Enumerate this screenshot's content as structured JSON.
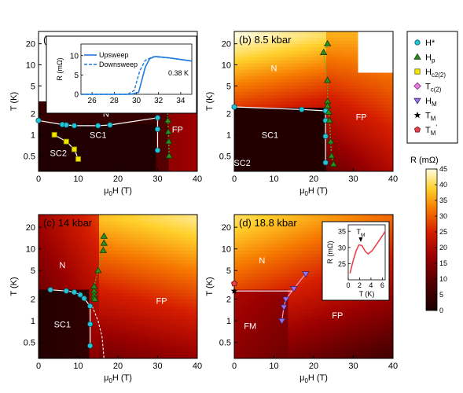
{
  "colors": {
    "hstar": "#22c4d6",
    "hp": "#2f8f1f",
    "hc2": "#f2e600",
    "tc2": "#e77be2",
    "hm": "#9a6ff0",
    "tm": "#000000",
    "tmp": "#e8414b",
    "hm_line": "#f49ad2",
    "inset_line": "#1f7bd9",
    "inset2_line": "#e8414b"
  },
  "chart_data": [
    {
      "type": "heatmap",
      "panel_label": "(a) 4 kbar",
      "xlabel": "μ0H (T)",
      "ylabel": "T (K)",
      "xlim": [
        0,
        40
      ],
      "ylim": [
        0.3,
        30
      ],
      "yscale": "log",
      "x_ticks": [
        "0",
        "10",
        "20",
        "30",
        "40"
      ],
      "y_ticks": [
        "0.5",
        "1",
        "2",
        "5",
        "10",
        "20"
      ],
      "y_tick_values": [
        0.5,
        1,
        2,
        5,
        10,
        20
      ],
      "data_max_T": 3.0,
      "regions": [
        {
          "label": "N",
          "x": 17,
          "y": 2.0
        },
        {
          "label": "SC1",
          "x": 15,
          "y": 1.0
        },
        {
          "label": "SC2",
          "x": 5,
          "y": 0.55
        },
        {
          "label": "FP",
          "x": 35,
          "y": 1.2
        }
      ],
      "series": [
        {
          "name": "H*",
          "marker": "circle",
          "x": [
            0,
            6,
            7,
            9,
            15,
            18,
            30,
            30,
            30
          ],
          "y": [
            1.6,
            1.4,
            1.38,
            1.35,
            1.35,
            1.38,
            1.75,
            1.2,
            0.6
          ]
        },
        {
          "name": "Hp",
          "marker": "triangle",
          "x": [
            32.5,
            32.6,
            32.7,
            32.8,
            32.9
          ],
          "y": [
            2.5,
            1.6,
            1.1,
            0.8,
            0.5
          ]
        },
        {
          "name": "Hc2(2)",
          "marker": "square",
          "x": [
            4,
            7,
            9,
            10
          ],
          "y": [
            1.0,
            0.8,
            0.62,
            0.45
          ]
        }
      ],
      "inset": {
        "xlabel": "μ0H (T)",
        "ylabel": "R (mΩ)",
        "xlim": [
          25,
          35
        ],
        "ylim": [
          0,
          13
        ],
        "x_ticks": [
          "26",
          "28",
          "30",
          "32",
          "34"
        ],
        "y_ticks": [
          "0",
          "5",
          "10"
        ],
        "legend": [
          "Upsweep",
          "Downsweep"
        ],
        "annotation": "0.38 K",
        "upsweep": {
          "x": [
            25,
            29.5,
            30.2,
            30.8,
            31.2,
            31.7,
            33,
            35
          ],
          "y": [
            0,
            0,
            0.5,
            7,
            9.2,
            9.8,
            9.4,
            8.6
          ]
        },
        "downsweep": {
          "x": [
            25,
            29.2,
            29.8,
            30.3,
            30.8,
            31.5,
            33,
            35
          ],
          "y": [
            0,
            0,
            1,
            6,
            8.8,
            9.7,
            9.4,
            8.6
          ]
        }
      }
    },
    {
      "type": "heatmap",
      "panel_label": "(b) 8.5 kbar",
      "xlabel": "μ0H (T)",
      "ylabel": "T (K)",
      "xlim": [
        0,
        40
      ],
      "ylim": [
        0.3,
        30
      ],
      "yscale": "log",
      "x_ticks": [
        "0",
        "10",
        "20",
        "30",
        "40"
      ],
      "y_ticks": [
        "0.5",
        "1",
        "2",
        "5",
        "10",
        "20"
      ],
      "y_tick_values": [
        0.5,
        1,
        2,
        5,
        10,
        20
      ],
      "regions": [
        {
          "label": "N",
          "x": 10,
          "y": 9
        },
        {
          "label": "SC1",
          "x": 9,
          "y": 1.0
        },
        {
          "label": "SC2",
          "x": 2,
          "y": 0.4
        },
        {
          "label": "FP",
          "x": 32,
          "y": 1.8
        }
      ],
      "series": [
        {
          "name": "H*",
          "marker": "circle",
          "x": [
            0,
            17,
            23,
            23,
            23,
            23
          ],
          "y": [
            2.5,
            2.3,
            2.2,
            1.6,
            0.95,
            0.4
          ]
        },
        {
          "name": "Hp",
          "marker": "triangle",
          "x": [
            23.5,
            22.5,
            23.5,
            23.5,
            23.5,
            23.8,
            24,
            24.3,
            24.5,
            25
          ],
          "y": [
            20,
            15,
            6,
            3,
            2.6,
            2.1,
            1.6,
            0.8,
            0.5,
            0.38
          ]
        }
      ]
    },
    {
      "type": "heatmap",
      "panel_label": "(c) 14 kbar",
      "xlabel": "μ0H (T)",
      "ylabel": "T (K)",
      "xlim": [
        0,
        40
      ],
      "ylim": [
        0.3,
        30
      ],
      "yscale": "log",
      "x_ticks": [
        "0",
        "10",
        "20",
        "30",
        "40"
      ],
      "y_ticks": [
        "0.5",
        "1",
        "2",
        "5",
        "10",
        "20"
      ],
      "y_tick_values": [
        0.5,
        1,
        2,
        5,
        10,
        20
      ],
      "regions": [
        {
          "label": "N",
          "x": 6,
          "y": 6
        },
        {
          "label": "SC1",
          "x": 6,
          "y": 0.9
        },
        {
          "label": "FP",
          "x": 31,
          "y": 1.9
        }
      ],
      "series": [
        {
          "name": "H*",
          "marker": "circle",
          "x": [
            3,
            7,
            9,
            10.5,
            11.5,
            13,
            13,
            13
          ],
          "y": [
            2.7,
            2.6,
            2.5,
            2.3,
            2.05,
            1.6,
            0.9,
            0.45
          ]
        },
        {
          "name": "Hp",
          "marker": "triangle",
          "x": [
            16.5,
            16.5,
            16.3,
            15,
            14,
            14,
            14,
            14,
            14.2
          ],
          "y": [
            15,
            12,
            9.5,
            5,
            3,
            2.6,
            2.3,
            2.1,
            2
          ]
        }
      ]
    },
    {
      "type": "heatmap",
      "panel_label": "(d) 18.8 kbar",
      "xlabel": "μ0H (T)",
      "ylabel": "T (K)",
      "xlim": [
        0,
        40
      ],
      "ylim": [
        0.3,
        30
      ],
      "yscale": "log",
      "x_ticks": [
        "0",
        "10",
        "20",
        "30",
        "40"
      ],
      "y_ticks": [
        "0.5",
        "1",
        "2",
        "5",
        "10",
        "20"
      ],
      "y_tick_values": [
        0.5,
        1,
        2,
        5,
        10,
        20
      ],
      "regions": [
        {
          "label": "N",
          "x": 7,
          "y": 7
        },
        {
          "label": "FM",
          "x": 4,
          "y": 0.85
        },
        {
          "label": "FP",
          "x": 26,
          "y": 1.2
        }
      ],
      "series": [
        {
          "name": "HM",
          "marker": "triangle-down",
          "x": [
            12,
            12.5,
            13,
            15,
            18
          ],
          "y": [
            1.0,
            1.55,
            2.0,
            2.8,
            4.5
          ]
        },
        {
          "name": "TM",
          "marker": "star",
          "x": [
            0
          ],
          "y": [
            2.6
          ]
        },
        {
          "name": "TM'",
          "marker": "pentagon",
          "x": [
            0
          ],
          "y": [
            3.3
          ]
        }
      ],
      "inset": {
        "xlabel": "T (K)",
        "ylabel": "R (mΩ)",
        "xlim": [
          0,
          6.5
        ],
        "ylim": [
          20,
          37
        ],
        "x_ticks": [
          "0",
          "2",
          "4",
          "6"
        ],
        "y_ticks": [
          "25",
          "30",
          "35"
        ],
        "annotation": "TM",
        "curve": {
          "x": [
            0.3,
            0.8,
            1.4,
            1.9,
            2.4,
            3.0,
            3.5,
            4.2,
            5,
            6,
            6.5
          ],
          "y": [
            22,
            25.5,
            29,
            30.8,
            30.6,
            28.8,
            28,
            29,
            31,
            33.6,
            35
          ]
        }
      }
    }
  ],
  "legend": {
    "entries": [
      {
        "label": "H*",
        "marker": "circle",
        "color_key": "hstar"
      },
      {
        "label": "Hp",
        "marker": "triangle",
        "color_key": "hp"
      },
      {
        "label": "Hc2(2)",
        "marker": "square",
        "color_key": "hc2"
      },
      {
        "label": "Tc(2)",
        "marker": "diamond",
        "color_key": "tc2"
      },
      {
        "label": "HM",
        "marker": "triangle-down",
        "color_key": "hm"
      },
      {
        "label": "TM",
        "marker": "star",
        "color_key": "tm"
      },
      {
        "label": "TM'",
        "marker": "pentagon",
        "color_key": "tmp"
      }
    ]
  },
  "colorbar": {
    "label": "R (mΩ)",
    "min": 0,
    "max": 45,
    "ticks": [
      "0",
      "5",
      "10",
      "15",
      "20",
      "25",
      "30",
      "35",
      "40",
      "45"
    ]
  }
}
